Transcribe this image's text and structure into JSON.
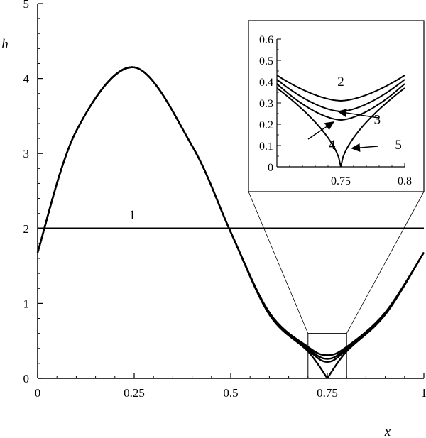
{
  "chart_data": {
    "type": "line",
    "xlabel": "x",
    "ylabel": "h",
    "xlim": [
      0,
      1
    ],
    "ylim": [
      0,
      5
    ],
    "x_ticks": [
      "0",
      "0.25",
      "0.5",
      "0.75",
      "1"
    ],
    "y_ticks": [
      "0",
      "1",
      "2",
      "3",
      "4",
      "5"
    ],
    "grid": false,
    "annotations": [
      {
        "text": "1",
        "x": 0.245,
        "y": 2.12
      }
    ],
    "series": [
      {
        "name": "1",
        "x": [
          0,
          1
        ],
        "y": [
          2,
          2
        ]
      },
      {
        "name": "2",
        "x": [
          0,
          0.1,
          0.25,
          0.4,
          0.5,
          0.6,
          0.7,
          0.75,
          0.8,
          0.9,
          1
        ],
        "y": [
          1.68,
          3.3,
          4.15,
          3.1,
          1.95,
          0.88,
          0.42,
          0.31,
          0.42,
          0.88,
          1.68
        ]
      },
      {
        "name": "3",
        "x": [
          0,
          0.1,
          0.25,
          0.4,
          0.5,
          0.6,
          0.7,
          0.75,
          0.8,
          0.9,
          1
        ],
        "y": [
          1.68,
          3.3,
          4.15,
          3.1,
          1.95,
          0.87,
          0.4,
          0.26,
          0.4,
          0.87,
          1.68
        ]
      },
      {
        "name": "4",
        "x": [
          0,
          0.1,
          0.25,
          0.4,
          0.5,
          0.6,
          0.7,
          0.75,
          0.8,
          0.9,
          1
        ],
        "y": [
          1.68,
          3.3,
          4.15,
          3.1,
          1.95,
          0.86,
          0.38,
          0.22,
          0.38,
          0.86,
          1.68
        ]
      },
      {
        "name": "5",
        "x": [
          0,
          0.1,
          0.25,
          0.4,
          0.5,
          0.6,
          0.7,
          0.75,
          0.8,
          0.9,
          1
        ],
        "y": [
          1.68,
          3.3,
          4.15,
          3.1,
          1.95,
          0.85,
          0.36,
          0.0,
          0.36,
          0.85,
          1.68
        ]
      }
    ],
    "inset": {
      "xlim": [
        0.7,
        0.8
      ],
      "ylim": [
        0,
        0.6
      ],
      "x_ticks": [
        "0.75",
        "0.8"
      ],
      "y_ticks": [
        "0",
        "0.1",
        "0.2",
        "0.3",
        "0.4",
        "0.5",
        "0.6"
      ],
      "labels": [
        {
          "text": "2",
          "x": 0.75,
          "y": 0.38
        },
        {
          "text": "3",
          "x": 0.767,
          "y": 0.222
        },
        {
          "text": "4",
          "x": 0.722,
          "y": 0.103
        },
        {
          "text": "5",
          "x": 0.768,
          "y": 0.103
        }
      ]
    }
  }
}
